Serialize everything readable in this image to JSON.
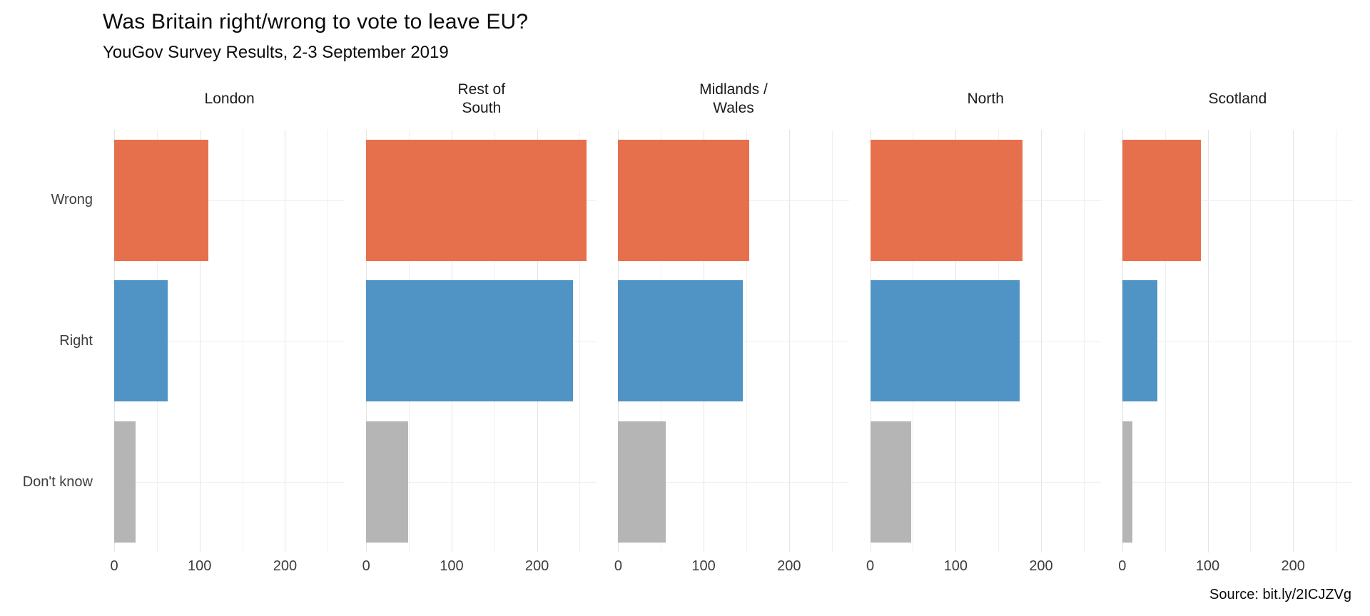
{
  "title": "Was Britain right/wrong to vote to leave EU?",
  "subtitle": "YouGov Survey Results, 2-3 September 2019",
  "source": "Source: bit.ly/2ICJZVg",
  "chart_data": {
    "type": "bar",
    "orientation": "horizontal",
    "title": "Was Britain right/wrong to vote to leave EU?",
    "subtitle": "YouGov Survey Results, 2-3 September 2019",
    "categories": [
      "Wrong",
      "Right",
      "Don't know"
    ],
    "facets": [
      {
        "label": "London",
        "values": [
          110,
          63,
          25
        ]
      },
      {
        "label": "Rest of\nSouth",
        "values": [
          258,
          242,
          49
        ]
      },
      {
        "label": "Midlands /\nWales",
        "values": [
          153,
          146,
          56
        ]
      },
      {
        "label": "North",
        "values": [
          178,
          175,
          48
        ]
      },
      {
        "label": "Scotland",
        "values": [
          92,
          41,
          12
        ]
      }
    ],
    "colors": [
      "#e7704c",
      "#4f94c4",
      "#b5b5b5"
    ],
    "xlim": [
      0,
      270
    ],
    "x_ticks": [
      0,
      100,
      200
    ],
    "gridlines": [
      0,
      50,
      100,
      150,
      200,
      250
    ],
    "legend": "none",
    "grid": "on"
  }
}
